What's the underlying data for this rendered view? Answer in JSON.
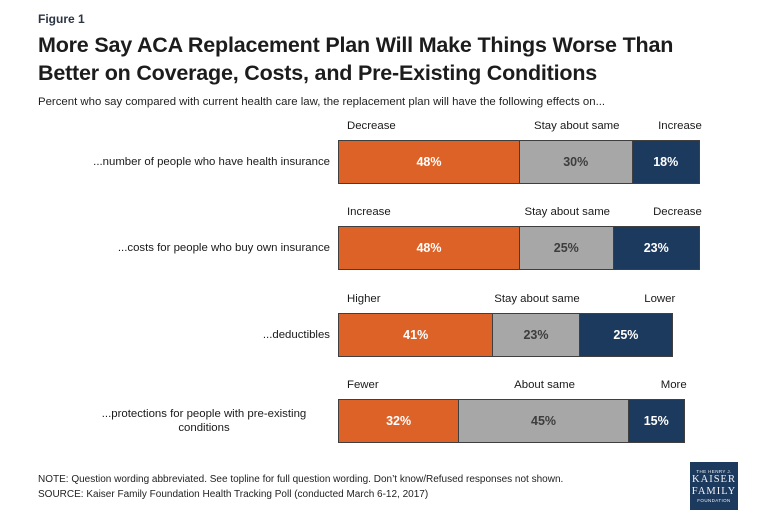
{
  "figure_label": "Figure 1",
  "header": {
    "title_lines": [
      "More Say ACA Replacement Plan Will Make Things Worse Than",
      "Better on Coverage, Costs, and Pre-Existing Conditions"
    ]
  },
  "subtitle": "Percent who say compared with current health care law, the replacement plan will have the following effects on...",
  "colors": {
    "orange": "#dd6227",
    "gray": "#a7a7a7",
    "navy": "#1c3a5e",
    "bar_border": "#3f3f3f"
  },
  "chart_data": {
    "type": "bar",
    "orientation": "horizontal-stacked",
    "title": "More Say ACA Replacement Plan Will Make Things Worse Than Better on Coverage, Costs, and Pre-Existing Conditions",
    "subtitle": "Percent who say compared with current health care law, the replacement plan will have the following effects on...",
    "unit": "percent",
    "value_range": [
      0,
      100
    ],
    "legend": "none",
    "rows": [
      {
        "category": "...number of people who have health insurance",
        "segments": [
          {
            "label": "Decrease",
            "value": 48,
            "color_key": "orange"
          },
          {
            "label": "Stay about same",
            "value": 30,
            "color_key": "gray"
          },
          {
            "label": "Increase",
            "value": 18,
            "color_key": "navy"
          }
        ]
      },
      {
        "category": "...costs for people who buy own insurance",
        "segments": [
          {
            "label": "Increase",
            "value": 48,
            "color_key": "orange"
          },
          {
            "label": "Stay about same",
            "value": 25,
            "color_key": "gray"
          },
          {
            "label": "Decrease",
            "value": 23,
            "color_key": "navy"
          }
        ]
      },
      {
        "category": "...deductibles",
        "segments": [
          {
            "label": "Higher",
            "value": 41,
            "color_key": "orange"
          },
          {
            "label": "Stay about same",
            "value": 23,
            "color_key": "gray"
          },
          {
            "label": "Lower",
            "value": 25,
            "color_key": "navy"
          }
        ]
      },
      {
        "category": "...protections for people with pre-existing conditions",
        "segments": [
          {
            "label": "Fewer",
            "value": 32,
            "color_key": "orange"
          },
          {
            "label": "About same",
            "value": 45,
            "color_key": "gray"
          },
          {
            "label": "More",
            "value": 15,
            "color_key": "navy"
          }
        ]
      }
    ]
  },
  "footer": {
    "note": "NOTE: Question wording abbreviated. See topline for full question wording. Don’t know/Refused responses not shown.",
    "source": "SOURCE: Kaiser Family Foundation Health Tracking Poll (conducted March 6-12, 2017)"
  },
  "logo": {
    "lines": [
      "THE HENRY J.",
      "KAISER",
      "FAMILY",
      "FOUNDATION"
    ]
  }
}
